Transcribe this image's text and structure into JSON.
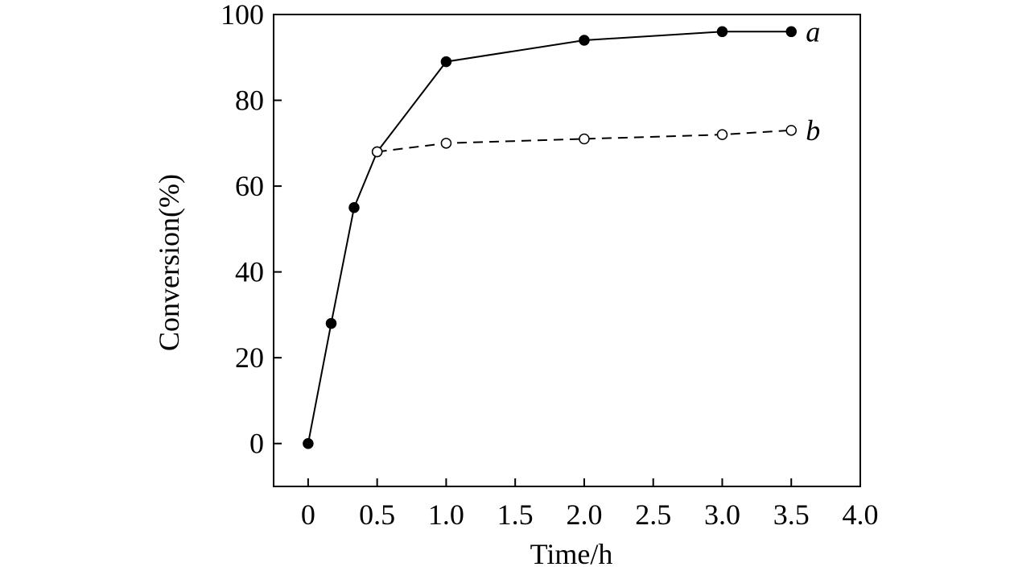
{
  "chart_data": {
    "type": "line",
    "x_label": "Time/h",
    "y_label": "Conversion(%)",
    "xlim": [
      -0.25,
      4.0
    ],
    "ylim": [
      -10,
      100
    ],
    "xticks": [
      0,
      0.5,
      {
        "value": 1,
        "label": "1.0"
      },
      1.5,
      {
        "value": 2,
        "label": "2.0"
      },
      2.5,
      {
        "value": 3,
        "label": "3.0"
      },
      3.5,
      {
        "value": 4,
        "label": "4.0"
      }
    ],
    "yticks": [
      0,
      20,
      40,
      60,
      80,
      100
    ],
    "series": [
      {
        "name": "a",
        "color": "#000000",
        "marker": "filled",
        "dashed": false,
        "x": [
          0,
          0.167,
          0.333,
          0.5,
          1,
          2,
          3,
          3.5
        ],
        "values": [
          0,
          28,
          55,
          68,
          89,
          94,
          96,
          96
        ]
      },
      {
        "name": "b",
        "color": "#000000",
        "marker": "open",
        "dashed": true,
        "x": [
          0.5,
          1,
          2,
          3,
          3.5
        ],
        "values": [
          68,
          70,
          71,
          72,
          73
        ]
      }
    ]
  }
}
